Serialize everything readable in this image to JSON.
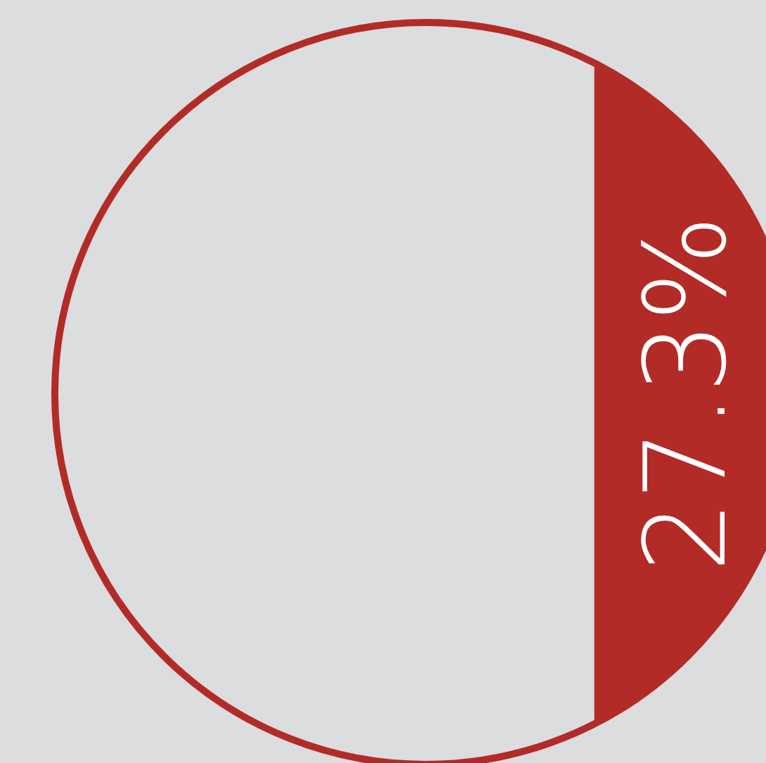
{
  "chart_data": {
    "type": "other",
    "values": [
      27.3
    ],
    "value_labels": [
      "27.3%"
    ],
    "color": "#b32b27"
  }
}
